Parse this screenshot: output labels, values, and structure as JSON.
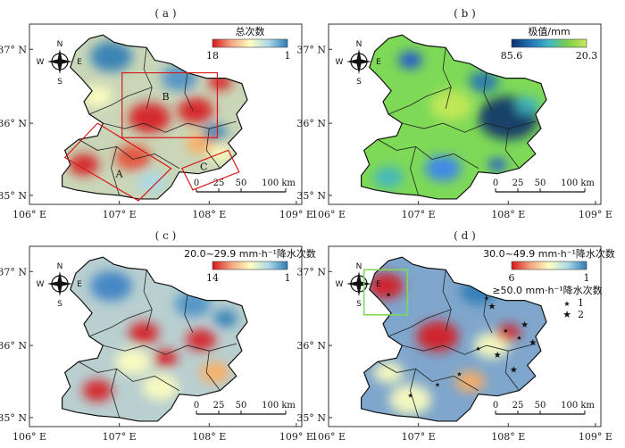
{
  "panels": [
    {
      "id": "a",
      "label": "( a )",
      "legend": {
        "title": "总次数",
        "min_label": "18",
        "max_label": "1",
        "colors": [
          "#d7191c",
          "#f4a582",
          "#ffffbf",
          "#abd9e9",
          "#2c7bb6"
        ]
      },
      "regions": [
        "A",
        "B",
        "C"
      ],
      "bg": "#c9d6b8",
      "blobs": [
        {
          "c": "#d7191c"
        },
        {
          "c": "#d7191c"
        },
        {
          "c": "#e34a33"
        },
        {
          "c": "#d7191c"
        },
        {
          "c": "#2c7bb6"
        },
        {
          "c": "#4a90c8"
        },
        {
          "c": "#ffffbf"
        },
        {
          "c": "#fdae61"
        },
        {
          "c": "#abd9e9"
        },
        {
          "c": "#d7191c"
        },
        {
          "c": "#ffffbf"
        },
        {
          "c": "#2c7bb6"
        }
      ]
    },
    {
      "id": "b",
      "label": "( b )",
      "legend": {
        "title": "极值/mm",
        "min_label": "85.6",
        "max_label": "20.3",
        "colors": [
          "#08306b",
          "#2171b5",
          "#41b6c4",
          "#7fcd4a",
          "#c7e95a"
        ]
      },
      "bg": "#7ed957",
      "blobs": [
        {
          "c": "#08306b"
        },
        {
          "c": "#2171b5"
        },
        {
          "c": "#1d4ed8"
        },
        {
          "c": "#3b82f6"
        },
        {
          "c": "#41b6c4"
        },
        {
          "c": "#c7e95a"
        },
        {
          "c": "#1d4ed8"
        },
        {
          "c": "#41b6c4"
        }
      ]
    },
    {
      "id": "c",
      "label": "( c )",
      "legend": {
        "title": "20.0~29.9 mm·h⁻¹降水次数",
        "min_label": "14",
        "max_label": "1",
        "colors": [
          "#d7191c",
          "#f4a582",
          "#ffffbf",
          "#abd9e9",
          "#2c7bb6"
        ]
      },
      "bg": "#b9cfd0",
      "blobs": [
        {
          "c": "#d7191c"
        },
        {
          "c": "#d7191c"
        },
        {
          "c": "#3b82c4"
        },
        {
          "c": "#ffffbf"
        },
        {
          "c": "#4a90c8"
        },
        {
          "c": "#d7191c"
        },
        {
          "c": "#ffffbf"
        },
        {
          "c": "#fdae61"
        },
        {
          "c": "#2c7bb6"
        },
        {
          "c": "#d7191c"
        }
      ]
    },
    {
      "id": "d",
      "label": "( d )",
      "legend": {
        "title": "30.0~49.9 mm·h⁻¹降水次数",
        "min_label": "6",
        "max_label": "1",
        "colors": [
          "#d7191c",
          "#f4a582",
          "#ffffbf",
          "#abd9e9",
          "#2c7bb6"
        ],
        "stars_title": "≥50.0 mm·h⁻¹降水次数",
        "stars": [
          {
            "label": "1"
          },
          {
            "label": "2"
          }
        ]
      },
      "bg": "#7fa6cc",
      "blobs": [
        {
          "c": "#d7191c"
        },
        {
          "c": "#d7191c"
        },
        {
          "c": "#ffffbf"
        },
        {
          "c": "#ffffbf"
        },
        {
          "c": "#d7191c"
        },
        {
          "c": "#fdae61"
        },
        {
          "c": "#ffffbf"
        },
        {
          "c": "#2c7bb6"
        }
      ]
    }
  ],
  "axes": {
    "x_ticks": [
      "106° E",
      "107° E",
      "108° E",
      "109° E"
    ],
    "y_ticks": [
      "37° N",
      "36° N",
      "35° N"
    ]
  },
  "scalebar": {
    "ticks": [
      "0",
      "25",
      "50",
      "100 km"
    ]
  },
  "compass": {
    "n": "N",
    "s": "S",
    "e": "E",
    "w": "W"
  }
}
